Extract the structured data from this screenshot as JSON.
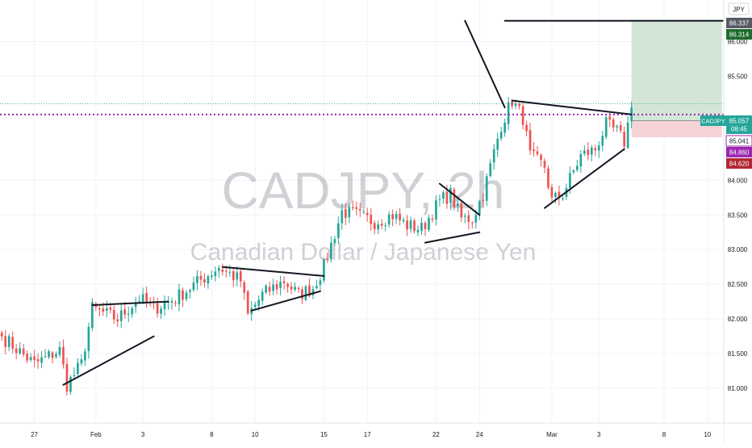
{
  "header": {
    "currency_badge": "JPY"
  },
  "watermark": {
    "symbol": "CADJPY, 2h",
    "name": "Canadian Dollar / Japanese Yen"
  },
  "colors": {
    "up": "#26a69a",
    "down": "#ef5350",
    "grid": "#f0f3fa",
    "axis_text": "#131722",
    "target_zone": "#d3e5d6",
    "stop_zone": "#f5d3d6",
    "entry_line": "#9c27b0",
    "price_tag": "#26a69a",
    "entry_tag": "#9c27b0",
    "stop_tag": "#b22833",
    "target_tag": "#1e6b2c",
    "high_tag": "#555a64"
  },
  "price_tags": [
    {
      "label": "86.337",
      "kind": "high"
    },
    {
      "label": "86.314",
      "kind": "target"
    },
    {
      "label": "CADJPY",
      "kind": "symbol"
    },
    {
      "label": "85.057",
      "kind": "price"
    },
    {
      "label": "08:45",
      "kind": "countdown"
    },
    {
      "label": "85.041",
      "kind": "level"
    },
    {
      "label": "84.860",
      "kind": "entry"
    },
    {
      "label": "84.620",
      "kind": "stop"
    }
  ],
  "chart_data": {
    "type": "candlestick",
    "symbol": "CADJPY",
    "timeframe": "2h",
    "y_ticks": [
      "86.000",
      "85.500",
      "84.000",
      "83.500",
      "83.000",
      "82.500",
      "82.000",
      "81.500",
      "81.000"
    ],
    "y_tick_values": [
      86.0,
      85.5,
      84.0,
      83.5,
      83.0,
      82.5,
      82.0,
      81.5,
      81.0
    ],
    "ylim": [
      80.5,
      86.6
    ],
    "x_ticks": [
      "27",
      "Feb",
      "3",
      "8",
      "10",
      "15",
      "17",
      "22",
      "24",
      "Mar",
      "3",
      "8",
      "10"
    ],
    "x_tick_index": [
      9,
      26,
      39,
      58,
      70,
      89,
      101,
      120,
      132,
      152,
      165,
      183,
      195
    ],
    "anchors": [
      [
        0,
        81.75
      ],
      [
        9,
        81.35
      ],
      [
        16,
        81.55
      ],
      [
        18,
        81.05
      ],
      [
        22,
        81.35
      ],
      [
        25,
        82.15
      ],
      [
        32,
        82.0
      ],
      [
        38,
        82.3
      ],
      [
        42,
        82.15
      ],
      [
        48,
        82.3
      ],
      [
        56,
        82.6
      ],
      [
        60,
        82.75
      ],
      [
        66,
        82.55
      ],
      [
        68,
        82.05
      ],
      [
        72,
        82.35
      ],
      [
        78,
        82.55
      ],
      [
        82,
        82.35
      ],
      [
        86,
        82.45
      ],
      [
        89,
        82.75
      ],
      [
        94,
        83.55
      ],
      [
        98,
        83.5
      ],
      [
        103,
        83.4
      ],
      [
        108,
        83.5
      ],
      [
        112,
        83.35
      ],
      [
        116,
        83.3
      ],
      [
        121,
        83.7
      ],
      [
        124,
        83.8
      ],
      [
        127,
        83.45
      ],
      [
        130,
        83.45
      ],
      [
        133,
        83.8
      ],
      [
        138,
        84.8
      ],
      [
        141,
        85.15
      ],
      [
        144,
        84.9
      ],
      [
        146,
        84.35
      ],
      [
        150,
        84.2
      ],
      [
        152,
        83.7
      ],
      [
        155,
        83.8
      ],
      [
        160,
        84.35
      ],
      [
        164,
        84.45
      ],
      [
        167,
        84.8
      ],
      [
        170,
        84.7
      ],
      [
        172,
        84.55
      ],
      [
        174,
        85.05
      ]
    ],
    "trendlines": [
      {
        "from": [
          17,
          81.05
        ],
        "to": [
          42,
          81.75
        ]
      },
      {
        "from": [
          25,
          82.2
        ],
        "to": [
          46,
          82.25
        ]
      },
      {
        "from": [
          61,
          82.75
        ],
        "to": [
          89,
          82.62
        ]
      },
      {
        "from": [
          69,
          82.12
        ],
        "to": [
          88,
          82.4
        ]
      },
      {
        "from": [
          117,
          83.1
        ],
        "to": [
          132,
          83.25
        ]
      },
      {
        "from": [
          121,
          83.95
        ],
        "to": [
          132,
          83.5
        ]
      },
      {
        "from": [
          128,
          86.3
        ],
        "to": [
          139,
          85.05
        ]
      },
      {
        "from": [
          139,
          86.3
        ],
        "to": [
          204,
          86.3
        ]
      },
      {
        "from": [
          141,
          85.15
        ],
        "to": [
          174,
          84.95
        ]
      },
      {
        "from": [
          150,
          83.6
        ],
        "to": [
          172,
          84.45
        ]
      }
    ],
    "position": {
      "target": 86.314,
      "entry": 84.86,
      "stop": 84.62,
      "start_index": 174,
      "end_index": 199
    },
    "last_price": 85.057,
    "dotted_level": 85.041,
    "high": 86.337
  }
}
